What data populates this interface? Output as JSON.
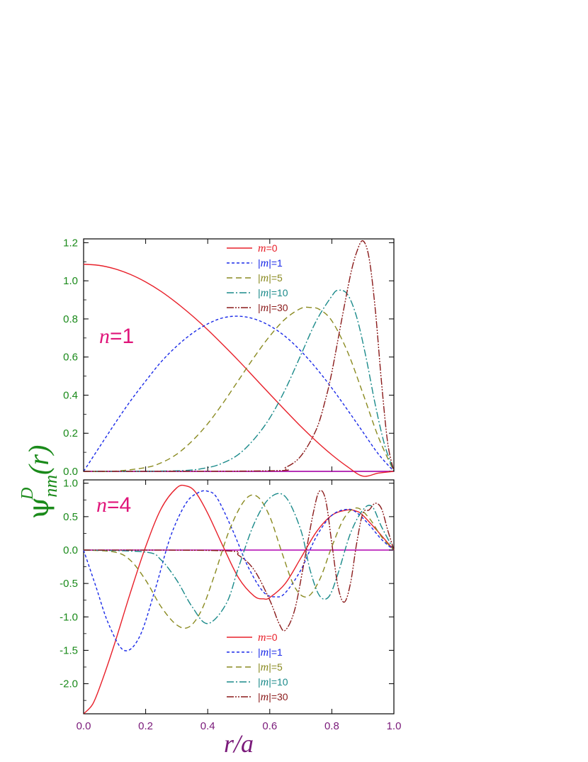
{
  "chart_data": [
    {
      "type": "line",
      "panel_label": "n=1",
      "ylim": [
        0,
        1.22
      ],
      "xlim": [
        0,
        1
      ],
      "yticks": [
        "0.0",
        "0.2",
        "0.4",
        "0.6",
        "0.8",
        "1.0",
        "1.2"
      ],
      "legend_position": "top-center",
      "series": [
        {
          "name": "m=0",
          "color": "#e8202a",
          "dash": "solid",
          "x": [
            0,
            0.05,
            0.1,
            0.15,
            0.2,
            0.25,
            0.3,
            0.35,
            0.4,
            0.45,
            0.5,
            0.55,
            0.6,
            0.65,
            0.7,
            0.75,
            0.8,
            0.85,
            0.9,
            0.95,
            1.0
          ],
          "y": [
            1.087,
            1.081,
            1.063,
            1.034,
            0.994,
            0.944,
            0.884,
            0.817,
            0.743,
            0.663,
            0.58,
            0.493,
            0.406,
            0.32,
            0.236,
            0.158,
            0.087,
            0.025,
            -0.025,
            -0.009,
            0.0
          ]
        },
        {
          "name": "|m|=1",
          "color": "#1a2ae8",
          "dash": "4 3",
          "x": [
            0,
            0.05,
            0.1,
            0.15,
            0.2,
            0.25,
            0.3,
            0.35,
            0.4,
            0.45,
            0.5,
            0.55,
            0.6,
            0.65,
            0.7,
            0.75,
            0.8,
            0.85,
            0.9,
            0.95,
            1.0
          ],
          "y": [
            0,
            0.125,
            0.249,
            0.367,
            0.474,
            0.575,
            0.657,
            0.724,
            0.774,
            0.806,
            0.814,
            0.8,
            0.764,
            0.708,
            0.632,
            0.541,
            0.437,
            0.324,
            0.207,
            0.091,
            0.0
          ]
        },
        {
          "name": "|m|=5",
          "color": "#8a8a20",
          "dash": "8 5",
          "x": [
            0,
            0.1,
            0.2,
            0.25,
            0.3,
            0.35,
            0.4,
            0.45,
            0.5,
            0.55,
            0.6,
            0.65,
            0.7,
            0.73,
            0.76,
            0.8,
            0.85,
            0.9,
            0.95,
            1.0
          ],
          "y": [
            0,
            0.001,
            0.02,
            0.045,
            0.09,
            0.16,
            0.25,
            0.36,
            0.48,
            0.6,
            0.71,
            0.8,
            0.855,
            0.86,
            0.85,
            0.79,
            0.63,
            0.41,
            0.18,
            0.0
          ]
        },
        {
          "name": "|m|=10",
          "color": "#1a8a8a",
          "dash": "10 3 2 3",
          "x": [
            0,
            0.3,
            0.4,
            0.45,
            0.5,
            0.55,
            0.6,
            0.65,
            0.7,
            0.75,
            0.8,
            0.82,
            0.85,
            0.88,
            0.91,
            0.94,
            0.97,
            1.0
          ],
          "y": [
            0,
            0.003,
            0.02,
            0.045,
            0.09,
            0.17,
            0.28,
            0.43,
            0.61,
            0.79,
            0.92,
            0.95,
            0.93,
            0.81,
            0.6,
            0.35,
            0.14,
            0.0
          ]
        },
        {
          "name": "|m|=30",
          "color": "#8a1a1a",
          "dash": "10 2 2 2 2 2",
          "x": [
            0,
            0.6,
            0.65,
            0.7,
            0.75,
            0.78,
            0.8,
            0.83,
            0.86,
            0.88,
            0.9,
            0.92,
            0.94,
            0.96,
            0.98,
            1.0
          ],
          "y": [
            0,
            0.003,
            0.02,
            0.08,
            0.22,
            0.38,
            0.52,
            0.78,
            1.03,
            1.15,
            1.21,
            1.12,
            0.85,
            0.47,
            0.15,
            0.0
          ]
        }
      ]
    },
    {
      "type": "line",
      "panel_label": "n=4",
      "ylim": [
        -2.45,
        1.05
      ],
      "xlim": [
        0,
        1
      ],
      "yticks": [
        "-2.0",
        "-1.5",
        "-1.0",
        "-0.5",
        "0.0",
        "0.5",
        "1.0"
      ],
      "xticks": [
        "0.0",
        "0.2",
        "0.4",
        "0.6",
        "0.8",
        "1.0"
      ],
      "legend_position": "bottom-center",
      "series": [
        {
          "name": "m=0",
          "color": "#e8202a",
          "dash": "solid",
          "x": [
            0,
            0.03,
            0.06,
            0.1,
            0.15,
            0.2,
            0.25,
            0.3,
            0.33,
            0.36,
            0.4,
            0.45,
            0.5,
            0.55,
            0.58,
            0.6,
            0.65,
            0.7,
            0.75,
            0.8,
            0.85,
            0.88,
            0.9,
            0.95,
            1.0
          ],
          "y": [
            -2.45,
            -2.3,
            -1.95,
            -1.4,
            -0.65,
            0.05,
            0.62,
            0.93,
            0.96,
            0.87,
            0.55,
            0.05,
            -0.42,
            -0.69,
            -0.73,
            -0.71,
            -0.5,
            -0.12,
            0.27,
            0.52,
            0.6,
            0.58,
            0.52,
            0.27,
            0.0
          ]
        },
        {
          "name": "|m|=1",
          "color": "#1a2ae8",
          "dash": "4 3",
          "x": [
            0,
            0.04,
            0.08,
            0.13,
            0.18,
            0.23,
            0.28,
            0.33,
            0.37,
            0.4,
            0.43,
            0.48,
            0.53,
            0.58,
            0.62,
            0.65,
            0.7,
            0.75,
            0.8,
            0.85,
            0.88,
            0.92,
            0.96,
            1.0
          ],
          "y": [
            0,
            -0.55,
            -1.1,
            -1.5,
            -1.3,
            -0.6,
            0.2,
            0.7,
            0.86,
            0.88,
            0.78,
            0.3,
            -0.25,
            -0.63,
            -0.7,
            -0.64,
            -0.3,
            0.2,
            0.52,
            0.61,
            0.56,
            0.38,
            0.16,
            0.0
          ]
        },
        {
          "name": "|m|=5",
          "color": "#8a8a20",
          "dash": "8 5",
          "x": [
            0,
            0.1,
            0.15,
            0.2,
            0.25,
            0.3,
            0.34,
            0.38,
            0.42,
            0.47,
            0.52,
            0.56,
            0.6,
            0.64,
            0.68,
            0.72,
            0.76,
            0.8,
            0.84,
            0.88,
            0.92,
            0.96,
            1.0
          ],
          "y": [
            0,
            -0.03,
            -0.15,
            -0.45,
            -0.85,
            -1.12,
            -1.15,
            -0.9,
            -0.4,
            0.3,
            0.75,
            0.8,
            0.5,
            -0.05,
            -0.55,
            -0.7,
            -0.45,
            0.05,
            0.48,
            0.63,
            0.48,
            0.2,
            0.0
          ]
        },
        {
          "name": "|m|=10",
          "color": "#1a8a8a",
          "dash": "10 3 2 3",
          "x": [
            0,
            0.2,
            0.25,
            0.3,
            0.35,
            0.4,
            0.46,
            0.5,
            0.55,
            0.6,
            0.65,
            0.7,
            0.73,
            0.76,
            0.79,
            0.82,
            0.86,
            0.9,
            0.93,
            0.96,
            1.0
          ],
          "y": [
            0,
            -0.03,
            -0.15,
            -0.45,
            -0.85,
            -1.1,
            -0.8,
            -0.25,
            0.4,
            0.78,
            0.8,
            0.3,
            -0.3,
            -0.68,
            -0.7,
            -0.35,
            0.25,
            0.6,
            0.65,
            0.35,
            0.0
          ]
        },
        {
          "name": "|m|=30",
          "color": "#8a1a1a",
          "dash": "10 2 2 2 2 2",
          "x": [
            0,
            0.45,
            0.5,
            0.55,
            0.6,
            0.63,
            0.65,
            0.68,
            0.71,
            0.74,
            0.76,
            0.78,
            0.8,
            0.82,
            0.84,
            0.86,
            0.88,
            0.9,
            0.92,
            0.94,
            0.96,
            0.98,
            1.0
          ],
          "y": [
            0,
            -0.01,
            -0.08,
            -0.3,
            -0.75,
            -1.1,
            -1.2,
            -0.9,
            -0.2,
            0.55,
            0.88,
            0.75,
            0.1,
            -0.55,
            -0.78,
            -0.5,
            0.1,
            0.55,
            0.6,
            0.7,
            0.62,
            0.3,
            0.0
          ]
        }
      ]
    }
  ],
  "axis_labels": {
    "ylabel": "ψ",
    "ylabel_sup": "D",
    "ylabel_sub": "nm",
    "ylabel_arg": "(r)",
    "xlabel": "r/a"
  },
  "legend_top": [
    {
      "italic": "m",
      "rest": "=0",
      "pre": "",
      "color": "#e8202a"
    },
    {
      "italic": "m",
      "rest": "|=1",
      "pre": "|",
      "color": "#1a2ae8"
    },
    {
      "italic": "m",
      "rest": "|=5",
      "pre": "|",
      "color": "#8a8a20"
    },
    {
      "italic": "m",
      "rest": "|=10",
      "pre": "|",
      "color": "#1a8a8a"
    },
    {
      "italic": "m",
      "rest": "|=30",
      "pre": "|",
      "color": "#8a1a1a"
    }
  ],
  "panel_top_label": {
    "italic": "n",
    "rest": "=1"
  },
  "panel_bottom_label": {
    "italic": "n",
    "rest": "=4"
  },
  "colors": {
    "y_axis": "#1a8a1a",
    "x_axis": "#7a1a7a",
    "zero_line": "#b000b0",
    "panel_label": "#e0157a"
  }
}
